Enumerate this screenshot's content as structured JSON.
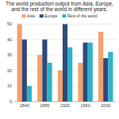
{
  "chart_data": {
    "type": "bar",
    "title": "The world production output from Asia, Europe, and the rest of the world in different years.",
    "categories": [
      "1840",
      "1880",
      "1920",
      "1960",
      "2000"
    ],
    "series": [
      {
        "name": "Asia",
        "color": "#f4a06c",
        "values": [
          50,
          30,
          20,
          25,
          45
        ]
      },
      {
        "name": "Europe",
        "color": "#2e4a7a",
        "values": [
          40,
          40,
          50,
          38,
          28
        ]
      },
      {
        "name": "Rest of the world",
        "color": "#2db3c8",
        "values": [
          10,
          25,
          35,
          38,
          32
        ]
      }
    ],
    "ylim": [
      0,
      50
    ],
    "yticks": [
      0,
      10,
      20,
      30,
      40,
      50
    ],
    "grid": true,
    "legend": "top"
  }
}
